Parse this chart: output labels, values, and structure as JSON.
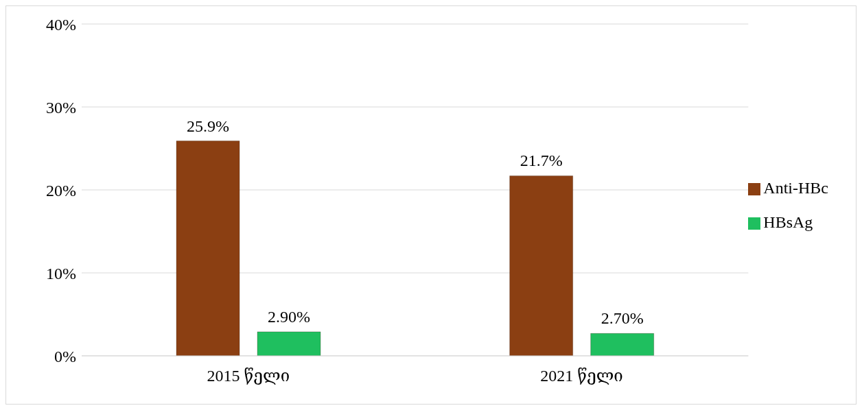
{
  "chart_data": {
    "type": "bar",
    "categories": [
      "2015 წელი",
      "2021 წელი"
    ],
    "series": [
      {
        "name": "Anti-HBc",
        "color": "#8b3f12",
        "values": [
          25.9,
          21.7
        ],
        "value_labels": [
          "25.9%",
          "21.7%"
        ]
      },
      {
        "name": "HBsAg",
        "color": "#1fbf5f",
        "values": [
          2.9,
          2.7
        ],
        "value_labels": [
          "2.90%",
          "2.70%"
        ]
      }
    ],
    "ylim": [
      0,
      40
    ],
    "yticks": [
      {
        "value": 0,
        "label": "0%"
      },
      {
        "value": 10,
        "label": "10%"
      },
      {
        "value": 20,
        "label": "20%"
      },
      {
        "value": 30,
        "label": "30%"
      },
      {
        "value": 40,
        "label": "40%"
      }
    ],
    "grid": "y",
    "legend": "right"
  }
}
